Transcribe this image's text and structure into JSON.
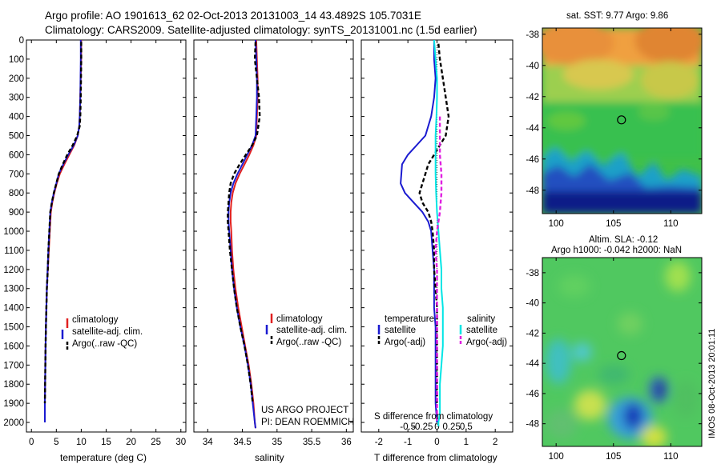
{
  "header": {
    "line1": "Argo profile: AO 1901613_62 02-Oct-2013 20131003_14 43.4892S 105.7031E",
    "line2": "Climatology: CARS2009. Satellite-adjusted climatology: synTS_20131001.nc (1.5d earlier)"
  },
  "colors": {
    "climatology": "#e02020",
    "satellite": "#1a1ad0",
    "argo": "#000000",
    "cyan_satellite": "#00e5e5",
    "argo_adj_magenta": "#e020e0"
  },
  "panels": {
    "temperature": {
      "xlabel": "temperature (deg C)",
      "legend": [
        "climatology",
        "satellite-adj. clim.",
        "Argo(..raw -QC)"
      ]
    },
    "salinity": {
      "xlabel": "salinity",
      "legend": [
        "climatology",
        "satellite-adj. clim.",
        "Argo(..raw -QC)"
      ],
      "note1": "US ARGO PROJECT",
      "note2": "PI: DEAN ROEMMICH"
    },
    "difference": {
      "xlabel": "T difference from climatology",
      "s_label": "S difference from climatology",
      "legend_temperature_title": "temperature",
      "legend_salinity_title": "salinity",
      "legend_t_sat": "satellite",
      "legend_t_argo": "Argo(-adj)",
      "legend_s_sat": "satellite",
      "legend_s_argo": "Argo(-adj)"
    }
  },
  "maps": {
    "sst_title": "sat. SST: 9.77 Argo: 9.86",
    "sla_title1": "Altim. SLA: -0.12",
    "sla_title2": "Argo h1000: -0.042 h2000: NaN",
    "watermark": "IMOS 08-Oct-2013 20:01:11"
  },
  "chart_data": [
    {
      "type": "line",
      "panel": "temperature",
      "xlabel": "temperature (deg C)",
      "xlim": [
        -1,
        31
      ],
      "ylim": [
        2050,
        0
      ],
      "xticks": [
        0,
        5,
        10,
        15,
        20,
        25,
        30
      ],
      "yticks": [
        0,
        100,
        200,
        300,
        400,
        500,
        600,
        700,
        800,
        900,
        1000,
        1100,
        1200,
        1300,
        1400,
        1500,
        1600,
        1700,
        1800,
        1900,
        2000
      ],
      "series": [
        {
          "name": "climatology",
          "color": "#e02020",
          "dash": "solid",
          "x": [
            10.0,
            10.0,
            9.9,
            9.8,
            9.7,
            9.6,
            9.3,
            8.6,
            7.6,
            6.6,
            5.7,
            5.1,
            4.6,
            4.2,
            3.9,
            3.7,
            3.5,
            3.3,
            3.1,
            3.0,
            2.9,
            2.85,
            2.8,
            2.75,
            2.7,
            2.7
          ],
          "y": [
            0,
            100,
            200,
            300,
            400,
            450,
            500,
            550,
            600,
            650,
            700,
            750,
            800,
            850,
            900,
            1000,
            1100,
            1200,
            1300,
            1400,
            1500,
            1600,
            1700,
            1800,
            1900,
            2000
          ]
        },
        {
          "name": "satellite-adj. clim.",
          "color": "#1a1ad0",
          "dash": "solid",
          "x": [
            9.9,
            9.9,
            9.85,
            9.8,
            9.7,
            9.6,
            9.3,
            8.5,
            7.4,
            6.4,
            5.5,
            5.0,
            4.5,
            4.1,
            3.8,
            3.6,
            3.4,
            3.25,
            3.1,
            3.0,
            2.9,
            2.85,
            2.8,
            2.75,
            2.7,
            2.7
          ],
          "y": [
            0,
            100,
            200,
            300,
            400,
            450,
            500,
            550,
            600,
            650,
            700,
            750,
            800,
            850,
            900,
            1000,
            1100,
            1200,
            1300,
            1400,
            1500,
            1600,
            1700,
            1800,
            1900,
            2000
          ]
        },
        {
          "name": "Argo(..raw -QC)",
          "color": "#000000",
          "dash": "dashed",
          "x": [
            10.0,
            10.0,
            9.95,
            9.9,
            9.8,
            9.7,
            9.2,
            8.3,
            7.2,
            6.3,
            5.5,
            5.0,
            4.5,
            4.1,
            3.8,
            3.6,
            3.4,
            3.3,
            3.1,
            3.0,
            2.9,
            2.85,
            2.8,
            2.75,
            2.7
          ],
          "y": [
            10,
            100,
            200,
            300,
            400,
            450,
            500,
            550,
            600,
            650,
            700,
            750,
            800,
            850,
            900,
            1000,
            1100,
            1200,
            1300,
            1400,
            1500,
            1600,
            1700,
            1800,
            1900
          ]
        }
      ]
    },
    {
      "type": "line",
      "panel": "salinity",
      "xlabel": "salinity",
      "xlim": [
        33.8,
        36.1
      ],
      "ylim": [
        2050,
        0
      ],
      "xticks": [
        34,
        34.5,
        35,
        35.5,
        36
      ],
      "series": [
        {
          "name": "climatology",
          "color": "#e02020",
          "dash": "solid",
          "x": [
            34.7,
            34.71,
            34.72,
            34.72,
            34.71,
            34.7,
            34.66,
            34.6,
            34.53,
            34.46,
            34.4,
            34.36,
            34.34,
            34.33,
            34.33,
            34.34,
            34.35,
            34.37,
            34.4,
            34.44,
            34.49,
            34.54,
            34.59,
            34.63,
            34.66,
            34.68,
            34.69
          ],
          "y": [
            0,
            100,
            200,
            300,
            400,
            500,
            550,
            600,
            650,
            700,
            750,
            800,
            850,
            900,
            950,
            1000,
            1100,
            1200,
            1300,
            1400,
            1500,
            1600,
            1700,
            1800,
            1900,
            2000,
            2030
          ]
        },
        {
          "name": "satellite-adj. clim.",
          "color": "#1a1ad0",
          "dash": "solid",
          "x": [
            34.69,
            34.7,
            34.71,
            34.71,
            34.7,
            34.69,
            34.64,
            34.57,
            34.5,
            34.43,
            34.37,
            34.33,
            34.31,
            34.3,
            34.3,
            34.31,
            34.33,
            34.35,
            34.38,
            34.42,
            34.47,
            34.53,
            34.58,
            34.62,
            34.65,
            34.68,
            34.69
          ],
          "y": [
            0,
            100,
            200,
            300,
            400,
            500,
            550,
            600,
            650,
            700,
            750,
            800,
            850,
            900,
            950,
            1000,
            1100,
            1200,
            1300,
            1400,
            1500,
            1600,
            1700,
            1800,
            1900,
            2000,
            2030
          ]
        },
        {
          "name": "Argo(..raw -QC)",
          "color": "#000000",
          "dash": "dashed",
          "x": [
            34.69,
            34.68,
            34.71,
            34.74,
            34.75,
            34.71,
            34.64,
            34.55,
            34.46,
            34.38,
            34.33,
            34.31,
            34.3,
            34.29,
            34.29,
            34.3,
            34.32,
            34.35,
            34.38,
            34.42,
            34.47,
            34.53,
            34.58,
            34.62,
            34.65
          ],
          "y": [
            10,
            100,
            200,
            300,
            400,
            500,
            550,
            600,
            650,
            700,
            750,
            800,
            850,
            900,
            950,
            1000,
            1100,
            1200,
            1300,
            1400,
            1500,
            1600,
            1700,
            1800,
            1900
          ]
        }
      ]
    },
    {
      "type": "line",
      "panel": "difference",
      "xlabel": "T difference from climatology",
      "s_xlabel": "S difference from climatology",
      "xlim": [
        -2.6,
        2.6
      ],
      "ylim": [
        2050,
        0
      ],
      "xticks": [
        -2,
        -1,
        0,
        1,
        2
      ],
      "s_ticks": [
        -0.5,
        -0.25,
        0,
        0.25,
        0.5
      ],
      "series": [
        {
          "name": "temperature satellite",
          "color": "#1a1ad0",
          "dash": "solid",
          "x": [
            -0.1,
            -0.1,
            -0.05,
            -0.1,
            -0.2,
            -0.4,
            -0.7,
            -1.0,
            -1.2,
            -1.25,
            -1.1,
            -0.8,
            -0.5,
            -0.3,
            -0.2,
            -0.15,
            -0.1,
            -0.1,
            -0.1,
            -0.05,
            -0.05,
            -0.05,
            -0.05,
            -0.05,
            0.0
          ],
          "y": [
            0,
            100,
            200,
            300,
            400,
            500,
            550,
            600,
            650,
            750,
            800,
            850,
            900,
            950,
            1000,
            1100,
            1200,
            1300,
            1400,
            1500,
            1600,
            1700,
            1800,
            1900,
            2000
          ]
        },
        {
          "name": "temperature Argo(-adj)",
          "color": "#000000",
          "dash": "dashed",
          "x": [
            0.05,
            0.1,
            0.2,
            0.3,
            0.4,
            0.3,
            0.1,
            -0.1,
            -0.3,
            -0.4,
            -0.5,
            -0.6,
            -0.5,
            -0.3,
            -0.2,
            -0.15,
            -0.1,
            -0.1,
            -0.05,
            0.0,
            0.0,
            0.0,
            0.0,
            0.0
          ],
          "y": [
            20,
            100,
            200,
            300,
            400,
            500,
            550,
            600,
            650,
            700,
            750,
            800,
            850,
            900,
            950,
            1000,
            1100,
            1200,
            1300,
            1400,
            1500,
            1600,
            1700,
            1900
          ]
        },
        {
          "name": "salinity satellite",
          "color": "#00e5e5",
          "dash": "solid",
          "x": [
            -0.1,
            -0.05,
            0.0,
            0.0,
            -0.02,
            -0.05,
            -0.05,
            -0.05,
            -0.03,
            0.0,
            0.05,
            0.1,
            0.15,
            0.15,
            0.2,
            0.2,
            0.2,
            0.15,
            0.1,
            0.1,
            0.1,
            0.05,
            0.05,
            0.05
          ],
          "y": [
            0,
            100,
            200,
            300,
            400,
            500,
            600,
            700,
            800,
            900,
            1000,
            1100,
            1200,
            1300,
            1400,
            1500,
            1600,
            1700,
            1800,
            1900,
            1950,
            2000,
            2010,
            2020
          ]
        },
        {
          "name": "salinity Argo(-adj)",
          "color": "#e020e0",
          "dash": "dashed",
          "x": [
            0.1,
            0.1,
            0.1,
            0.1,
            0.15,
            0.15,
            0.1,
            0.0,
            -0.05,
            0.0,
            0.0,
            0.0,
            0.0,
            0.0,
            0.0
          ],
          "y": [
            400,
            500,
            550,
            600,
            700,
            800,
            900,
            1000,
            1100,
            1200,
            1400,
            1600,
            1800,
            1900,
            2000
          ]
        }
      ]
    },
    {
      "type": "heatmap",
      "panel": "sst_map",
      "title": "sat. SST: 9.77 Argo: 9.86",
      "xlim": [
        98.8,
        112.7
      ],
      "ylim": [
        -49.5,
        -37.6
      ],
      "xticks": [
        100,
        105,
        110
      ],
      "yticks": [
        -38,
        -40,
        -42,
        -44,
        -46,
        -48
      ],
      "marker": {
        "lon": 105.7,
        "lat": -43.49
      }
    },
    {
      "type": "heatmap",
      "panel": "sla_map",
      "title": "Altim. SLA: -0.12",
      "subtitle": "Argo h1000: -0.042 h2000: NaN",
      "xlim": [
        98.8,
        112.7
      ],
      "ylim": [
        -49.5,
        -37.0
      ],
      "xticks": [
        100,
        105,
        110
      ],
      "yticks": [
        -38,
        -40,
        -42,
        -44,
        -46,
        -48
      ],
      "marker": {
        "lon": 105.7,
        "lat": -43.49
      }
    }
  ]
}
